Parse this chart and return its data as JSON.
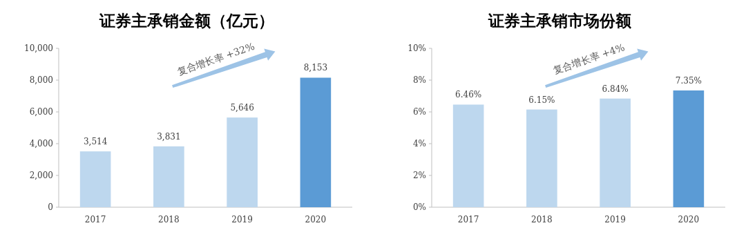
{
  "chart_data": [
    {
      "type": "bar",
      "title": "证券主承销金额（亿元）",
      "categories": [
        "2017",
        "2018",
        "2019",
        "2020"
      ],
      "values": [
        3514,
        3831,
        5646,
        8153
      ],
      "colors": [
        "#bdd7ee",
        "#bdd7ee",
        "#bdd7ee",
        "#5b9bd5"
      ],
      "value_labels": [
        "3,514",
        "3,831",
        "5,646",
        "8,153"
      ],
      "ylim": [
        0,
        10000
      ],
      "yticks": [
        0,
        {
          "value": 2000,
          "label": "2,000"
        },
        {
          "value": 4000,
          "label": "4,000"
        },
        {
          "value": 6000,
          "label": "6,000"
        },
        {
          "value": 8000,
          "label": "8,000"
        },
        {
          "value": 10000,
          "label": "10,000"
        }
      ],
      "annotations": [
        "复合增长率 +32%"
      ]
    },
    {
      "type": "bar",
      "title": "证券主承销市场份额",
      "categories": [
        "2017",
        "2018",
        "2019",
        "2020"
      ],
      "values": [
        6.46,
        6.15,
        6.84,
        7.35
      ],
      "colors": [
        "#bdd7ee",
        "#bdd7ee",
        "#bdd7ee",
        "#5b9bd5"
      ],
      "value_labels": [
        "6.46%",
        "6.15%",
        "6.84%",
        "7.35%"
      ],
      "ylim": [
        0,
        10
      ],
      "yticks": [
        {
          "value": 0,
          "label": "0%"
        },
        {
          "value": 2,
          "label": "2%"
        },
        {
          "value": 4,
          "label": "4%"
        },
        {
          "value": 6,
          "label": "6%"
        },
        {
          "value": 8,
          "label": "8%"
        },
        {
          "value": 10,
          "label": "10%"
        }
      ],
      "annotations": [
        "复合增长率 +4%"
      ]
    }
  ]
}
